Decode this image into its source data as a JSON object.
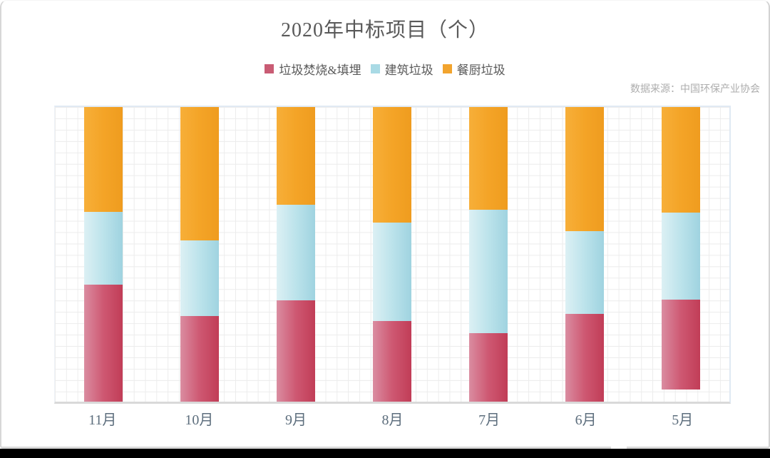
{
  "page": {
    "title": "2020年中标项目（个）",
    "source_note": "数据来源：中国环保产业协会"
  },
  "chart_data": {
    "type": "bar",
    "stacked": true,
    "stack_mode": "percent",
    "title": "2020年中标项目（个）",
    "unit_label": "个",
    "categories": [
      "11月",
      "10月",
      "9月",
      "8月",
      "7月",
      "6月",
      "5月"
    ],
    "series": [
      {
        "name": "垃圾焚烧&填埋",
        "key": "incineration-landfill",
        "swatch": "#C95C74",
        "gradient": [
          "#DA8DA1",
          "#CE5872",
          "#C13D57"
        ],
        "values_percent": [
          39.7,
          29.1,
          34.4,
          27.4,
          23.2,
          29.8,
          30.7
        ]
      },
      {
        "name": "建筑垃圾",
        "key": "construction-waste",
        "swatch": "#A9DAE5",
        "gradient": [
          "#DCF0F4",
          "#BCE3EB",
          "#9FD3E0"
        ],
        "values_percent": [
          24.7,
          25.7,
          32.4,
          33.4,
          41.9,
          28.1,
          29.5
        ]
      },
      {
        "name": "餐厨垃圾",
        "key": "kitchen-waste",
        "swatch": "#F2A42E",
        "gradient": [
          "#F7AF39",
          "#F4A427",
          "#EF9C1F"
        ],
        "values_percent": [
          35.6,
          45.2,
          33.2,
          39.2,
          34.9,
          42.1,
          35.8
        ]
      }
    ],
    "legend_position": "top",
    "grid": true,
    "y_axis_visible": false,
    "x_axis_labels_visible": true
  }
}
